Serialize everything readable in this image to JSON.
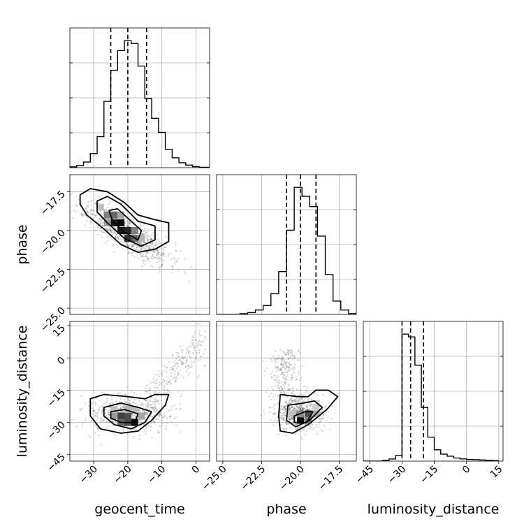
{
  "chart_data": {
    "type": "corner",
    "parameters": [
      "geocent_time",
      "phase",
      "luminosity_distance"
    ],
    "axes": {
      "geocent_time": {
        "label": "geocent_time",
        "range": [
          -37,
          4
        ],
        "ticks": [
          -30,
          -20,
          -10,
          0
        ],
        "tick_labels": [
          "−30",
          "−20",
          "−10",
          "0"
        ],
        "quantiles": [
          -25,
          -20,
          -14.5
        ],
        "hist_edges": [
          -37,
          -35,
          -33,
          -31,
          -29,
          -27,
          -25,
          -23,
          -21,
          -19,
          -17,
          -15,
          -13,
          -11,
          -9,
          -7,
          -5,
          -3,
          -1,
          1,
          4
        ],
        "hist_counts": [
          0.6,
          1.5,
          4,
          10,
          22,
          47,
          69,
          83,
          90,
          88,
          72,
          49,
          35,
          25,
          13,
          7,
          3.5,
          1.8,
          0.7,
          0.3
        ]
      },
      "phase": {
        "label": "phase",
        "range": [
          -25.4,
          -16.4
        ],
        "ticks": [
          -25.0,
          -22.5,
          -20.0,
          -17.5
        ],
        "tick_labels": [
          "−25.0",
          "−22.5",
          "−20.0",
          "−17.5"
        ],
        "quantiles": [
          -20.9,
          -20.0,
          -19.0
        ],
        "hist_edges": [
          -25.4,
          -24.9,
          -24.4,
          -23.9,
          -23.4,
          -22.9,
          -22.4,
          -21.9,
          -21.4,
          -20.9,
          -20.4,
          -19.9,
          -19.4,
          -18.9,
          -18.4,
          -17.9,
          -17.4,
          -16.9,
          -16.4
        ],
        "hist_counts": [
          0,
          0,
          0,
          0.5,
          1.2,
          3,
          6,
          14,
          29,
          57,
          86,
          80,
          73,
          53,
          27,
          9,
          3,
          0.5
        ]
      },
      "luminosity_distance": {
        "label": "luminosity_distance",
        "range": [
          -48,
          17
        ],
        "ticks": [
          -45,
          -30,
          -15,
          0,
          15
        ],
        "tick_labels": [
          "−45",
          "−30",
          "−15",
          "0",
          "15"
        ],
        "quantiles": [
          -30,
          -26,
          -20
        ],
        "hist_edges": [
          -48,
          -45,
          -42,
          -39,
          -36,
          -33,
          -30,
          -27,
          -24,
          -21,
          -18,
          -15,
          -12,
          -9,
          -6,
          -3,
          0,
          3,
          6,
          9,
          12,
          15
        ],
        "hist_counts": [
          0,
          0,
          0,
          0.6,
          1.5,
          4,
          90,
          88,
          68,
          38,
          17,
          8,
          5,
          3.5,
          2.2,
          1.6,
          1.2,
          1,
          0.8,
          0.6,
          0.4
        ]
      }
    },
    "grid": true,
    "panels": [
      {
        "row": 0,
        "col": 0,
        "kind": "hist",
        "param": "geocent_time"
      },
      {
        "row": 1,
        "col": 0,
        "kind": "density",
        "x": "geocent_time",
        "y": "phase"
      },
      {
        "row": 1,
        "col": 1,
        "kind": "hist",
        "param": "phase"
      },
      {
        "row": 2,
        "col": 0,
        "kind": "density",
        "x": "geocent_time",
        "y": "luminosity_distance"
      },
      {
        "row": 2,
        "col": 1,
        "kind": "density",
        "x": "phase",
        "y": "luminosity_distance"
      },
      {
        "row": 2,
        "col": 2,
        "kind": "hist",
        "param": "luminosity_distance"
      }
    ],
    "contours": {
      "geocent_time|phase": [
        [
          [
            -34,
            -17.7
          ],
          [
            -31,
            -17.3
          ],
          [
            -26,
            -17.5
          ],
          [
            -21,
            -18.2
          ],
          [
            -17,
            -19.0
          ],
          [
            -12,
            -19.3
          ],
          [
            -8,
            -19.5
          ],
          [
            -8,
            -20.7
          ],
          [
            -12,
            -21.2
          ],
          [
            -17,
            -21.4
          ],
          [
            -22,
            -20.9
          ],
          [
            -27,
            -19.9
          ],
          [
            -32,
            -19.0
          ],
          [
            -34,
            -18.3
          ]
        ],
        [
          [
            -29,
            -18.1
          ],
          [
            -26,
            -17.8
          ],
          [
            -22,
            -18.3
          ],
          [
            -17,
            -19.4
          ],
          [
            -12,
            -19.7
          ],
          [
            -12,
            -20.6
          ],
          [
            -16,
            -21.0
          ],
          [
            -21,
            -20.5
          ],
          [
            -26,
            -19.5
          ],
          [
            -29,
            -18.8
          ]
        ],
        [
          [
            -25.5,
            -18.7
          ],
          [
            -23,
            -18.6
          ],
          [
            -19,
            -19.4
          ],
          [
            -16,
            -20.0
          ],
          [
            -17,
            -20.6
          ],
          [
            -21,
            -20.1
          ],
          [
            -24.5,
            -19.4
          ]
        ]
      ],
      "geocent_time|luminosity_distance": [
        [
          [
            -31,
            -19
          ],
          [
            -27,
            -17
          ],
          [
            -20,
            -18
          ],
          [
            -15,
            -19
          ],
          [
            -12,
            -17
          ],
          [
            -8,
            -17
          ],
          [
            -9,
            -22
          ],
          [
            -13,
            -29
          ],
          [
            -17,
            -34
          ],
          [
            -22,
            -35
          ],
          [
            -28,
            -33
          ],
          [
            -31,
            -27
          ]
        ],
        [
          [
            -27,
            -23
          ],
          [
            -22,
            -21
          ],
          [
            -17,
            -23
          ],
          [
            -13,
            -25
          ],
          [
            -15,
            -30
          ],
          [
            -19,
            -33
          ],
          [
            -24,
            -31
          ],
          [
            -27,
            -27
          ]
        ],
        [
          [
            -25,
            -25
          ],
          [
            -21,
            -24
          ],
          [
            -17,
            -26
          ],
          [
            -18,
            -30
          ],
          [
            -22,
            -30
          ],
          [
            -25,
            -28
          ]
        ]
      ],
      "phase|luminosity_distance": [
        [
          [
            -21.3,
            -17
          ],
          [
            -20.2,
            -18
          ],
          [
            -19.5,
            -18
          ],
          [
            -19.0,
            -15
          ],
          [
            -18.2,
            -15
          ],
          [
            -17.6,
            -18
          ],
          [
            -18.3,
            -24
          ],
          [
            -19.5,
            -31
          ],
          [
            -20.5,
            -35
          ],
          [
            -21.3,
            -34
          ],
          [
            -21.4,
            -27
          ]
        ],
        [
          [
            -20.8,
            -22
          ],
          [
            -19.8,
            -21
          ],
          [
            -19.1,
            -20
          ],
          [
            -18.6,
            -23
          ],
          [
            -19.4,
            -29
          ],
          [
            -20.3,
            -32
          ],
          [
            -20.9,
            -29
          ]
        ],
        [
          [
            -20.4,
            -27
          ],
          [
            -19.7,
            -25
          ],
          [
            -19.2,
            -25
          ],
          [
            -19.6,
            -30
          ],
          [
            -20.4,
            -30
          ]
        ]
      ]
    },
    "density_cells": {
      "geocent_time|phase": [
        [
          -24,
          -19.5,
          0.9
        ],
        [
          -22,
          -19.5,
          1.0
        ],
        [
          -22,
          -20.0,
          0.9
        ],
        [
          -20,
          -20.0,
          0.85
        ],
        [
          -20,
          -20.5,
          0.8
        ],
        [
          -18,
          -20.5,
          0.6
        ],
        [
          -26,
          -19.0,
          0.5
        ],
        [
          -24,
          -19.0,
          0.6
        ],
        [
          -26,
          -19.5,
          0.4
        ],
        [
          -18,
          -20.0,
          0.5
        ],
        [
          -16,
          -20.5,
          0.3
        ],
        [
          -22,
          -19.0,
          0.35
        ],
        [
          -28,
          -18.5,
          0.25
        ]
      ],
      "geocent_time|luminosity_distance": [
        [
          -22,
          -27,
          0.75
        ],
        [
          -20,
          -27,
          0.7
        ],
        [
          -18,
          -30,
          0.95
        ],
        [
          -22,
          -30,
          0.6
        ],
        [
          -20,
          -30,
          0.7
        ],
        [
          -24,
          -27,
          0.4
        ],
        [
          -16,
          -27,
          0.35
        ],
        [
          -24,
          -24,
          0.25
        ],
        [
          -20,
          -24,
          0.3
        ],
        [
          -18,
          -24,
          0.25
        ]
      ],
      "phase|luminosity_distance": [
        [
          -20.0,
          -29,
          0.95
        ],
        [
          -19.5,
          -26,
          0.7
        ],
        [
          -19.5,
          -29,
          0.5
        ],
        [
          -20.0,
          -26,
          0.45
        ],
        [
          -19.0,
          -26,
          0.35
        ],
        [
          -20.5,
          -26,
          0.25
        ],
        [
          -19.0,
          -23,
          0.2
        ]
      ]
    },
    "scatter": {
      "geocent_time|phase": {
        "n": 900,
        "seed": 11,
        "kind": "linear",
        "cx": -20,
        "sx": 6,
        "slope": -0.12,
        "icpt": -22.4,
        "sy": 0.55
      },
      "geocent_time|luminosity_distance": {
        "n": 900,
        "seed": 23,
        "kind": "tail",
        "cx": -20,
        "sx": 6,
        "cy": -26,
        "sy": 4
      },
      "phase|luminosity_distance": {
        "n": 900,
        "seed": 37,
        "kind": "tail2",
        "cx": -20,
        "sx": 0.8,
        "cy": -26,
        "sy": 4
      }
    }
  }
}
